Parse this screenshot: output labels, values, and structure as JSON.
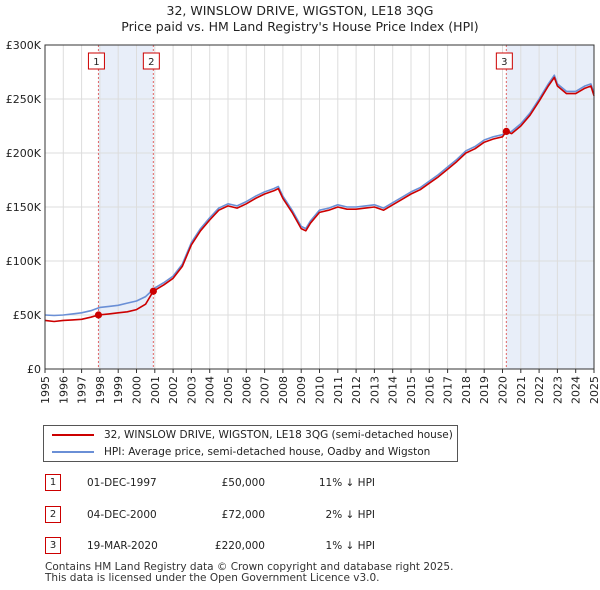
{
  "chart_data": {
    "type": "line",
    "title": "32, WINSLOW DRIVE, WIGSTON, LE18 3QG",
    "subtitle": "Price paid vs. HM Land Registry's House Price Index (HPI)",
    "xlim": [
      1995.0,
      2025.0
    ],
    "ylim": [
      0,
      300000
    ],
    "y_ticks": [
      0,
      50000,
      100000,
      150000,
      200000,
      250000,
      300000
    ],
    "y_tick_labels": [
      "£0",
      "£50K",
      "£100K",
      "£150K",
      "£200K",
      "£250K",
      "£300K"
    ],
    "x_ticks": [
      1995,
      1996,
      1997,
      1998,
      1999,
      2000,
      2001,
      2002,
      2003,
      2004,
      2005,
      2006,
      2007,
      2008,
      2009,
      2010,
      2011,
      2012,
      2013,
      2014,
      2015,
      2016,
      2017,
      2018,
      2019,
      2020,
      2021,
      2022,
      2023,
      2024,
      2025
    ],
    "x_tick_labels": [
      "1995",
      "1996",
      "1997",
      "1998",
      "1999",
      "2000",
      "2001",
      "2002",
      "2003",
      "2004",
      "2005",
      "2006",
      "2007",
      "2008",
      "2009",
      "2010",
      "2011",
      "2012",
      "2013",
      "2014",
      "2015",
      "2016",
      "2017",
      "2018",
      "2019",
      "2020",
      "2021",
      "2022",
      "2023",
      "2024",
      "2025"
    ],
    "series": [
      {
        "name": "32, WINSLOW DRIVE, WIGSTON, LE18 3QG (semi-detached house)",
        "color": "#cc0000",
        "x": [
          1995.0,
          1995.5,
          1996.0,
          1996.5,
          1997.0,
          1997.5,
          1997.92,
          1998.5,
          1999.0,
          1999.5,
          2000.0,
          2000.5,
          2000.92,
          2001.5,
          2002.0,
          2002.5,
          2003.0,
          2003.5,
          2004.0,
          2004.5,
          2005.0,
          2005.5,
          2006.0,
          2006.5,
          2007.0,
          2007.5,
          2007.75,
          2008.0,
          2008.5,
          2009.0,
          2009.25,
          2009.5,
          2010.0,
          2010.5,
          2011.0,
          2011.5,
          2012.0,
          2012.5,
          2013.0,
          2013.5,
          2014.0,
          2014.5,
          2015.0,
          2015.5,
          2016.0,
          2016.5,
          2017.0,
          2017.5,
          2018.0,
          2018.5,
          2019.0,
          2019.5,
          2020.0,
          2020.21,
          2020.5,
          2021.0,
          2021.5,
          2022.0,
          2022.5,
          2022.83,
          2023.0,
          2023.5,
          2024.0,
          2024.5,
          2024.83,
          2025.0
        ],
        "y": [
          45000,
          44000,
          45000,
          45500,
          46000,
          48000,
          50000,
          51000,
          52000,
          53000,
          55000,
          60000,
          72000,
          78000,
          84000,
          95000,
          115000,
          128000,
          138000,
          147000,
          151000,
          149000,
          153000,
          158000,
          162000,
          165000,
          167000,
          158000,
          145000,
          130000,
          128000,
          135000,
          145000,
          147000,
          150000,
          148000,
          148000,
          149000,
          150000,
          147000,
          152000,
          157000,
          162000,
          166000,
          172000,
          178000,
          185000,
          192000,
          200000,
          204000,
          210000,
          213000,
          215000,
          220000,
          218000,
          225000,
          235000,
          248000,
          262000,
          270000,
          262000,
          255000,
          255000,
          260000,
          262000,
          253000
        ]
      },
      {
        "name": "HPI: Average price, semi-detached house, Oadby and Wigston",
        "color": "#6a8fd6",
        "x": [
          1995.0,
          1995.5,
          1996.0,
          1996.5,
          1997.0,
          1997.5,
          1998.0,
          1998.5,
          1999.0,
          1999.5,
          2000.0,
          2000.5,
          2001.0,
          2001.5,
          2002.0,
          2002.5,
          2003.0,
          2003.5,
          2004.0,
          2004.5,
          2005.0,
          2005.5,
          2006.0,
          2006.5,
          2007.0,
          2007.5,
          2007.75,
          2008.0,
          2008.5,
          2009.0,
          2009.25,
          2009.5,
          2010.0,
          2010.5,
          2011.0,
          2011.5,
          2012.0,
          2012.5,
          2013.0,
          2013.5,
          2014.0,
          2014.5,
          2015.0,
          2015.5,
          2016.0,
          2016.5,
          2017.0,
          2017.5,
          2018.0,
          2018.5,
          2019.0,
          2019.5,
          2020.0,
          2020.5,
          2021.0,
          2021.5,
          2022.0,
          2022.5,
          2022.83,
          2023.0,
          2023.5,
          2024.0,
          2024.5,
          2024.83,
          2025.0
        ],
        "y": [
          50000,
          49500,
          50000,
          51000,
          52000,
          54000,
          57000,
          58000,
          59000,
          61000,
          63000,
          67000,
          75000,
          80000,
          86000,
          97000,
          117000,
          130000,
          140000,
          149000,
          153000,
          151000,
          155000,
          160000,
          164000,
          167000,
          169000,
          160000,
          147000,
          132000,
          130000,
          137000,
          147000,
          149000,
          152000,
          150000,
          150000,
          151000,
          152000,
          149000,
          154000,
          159000,
          164000,
          168000,
          174000,
          180000,
          187000,
          194000,
          202000,
          206000,
          212000,
          215000,
          217000,
          220000,
          227000,
          237000,
          250000,
          264000,
          272000,
          264000,
          257000,
          257000,
          262000,
          264000,
          255000
        ]
      }
    ],
    "sales": [
      {
        "id": "1",
        "x": 1997.92,
        "price": 50000
      },
      {
        "id": "2",
        "x": 2000.92,
        "price": 72000
      },
      {
        "id": "3",
        "x": 2020.21,
        "price": 220000
      }
    ]
  },
  "legend": {
    "property_label": "32, WINSLOW DRIVE, WIGSTON, LE18 3QG (semi-detached house)",
    "hpi_label": "HPI: Average price, semi-detached house, Oadby and Wigston"
  },
  "table": [
    {
      "num": "1",
      "date": "01-DEC-1997",
      "price": "£50,000",
      "relation": "11% ↓ HPI"
    },
    {
      "num": "2",
      "date": "04-DEC-2000",
      "price": "£72,000",
      "relation": "2% ↓ HPI"
    },
    {
      "num": "3",
      "date": "19-MAR-2020",
      "price": "£220,000",
      "relation": "1% ↓ HPI"
    }
  ],
  "footer": {
    "line1": "Contains HM Land Registry data © Crown copyright and database right 2025.",
    "line2": "This data is licensed under the Open Government Licence v3.0."
  }
}
